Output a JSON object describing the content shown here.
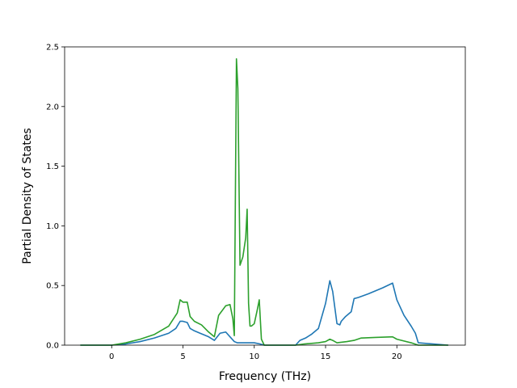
{
  "chart_data": {
    "type": "line",
    "title": "",
    "xlabel": "Frequency (THz)",
    "ylabel": "Partial Density of States",
    "xlim": [
      -3.3,
      24.8
    ],
    "ylim": [
      0,
      2.5
    ],
    "xticks": [
      0,
      5,
      10,
      15,
      20
    ],
    "xtick_labels": [
      "0",
      "5",
      "10",
      "15",
      "20"
    ],
    "yticks": [
      0.0,
      0.5,
      1.0,
      1.5,
      2.0,
      2.5
    ],
    "ytick_labels": [
      "0.0",
      "0.5",
      "1.0",
      "1.5",
      "2.0",
      "2.5"
    ],
    "grid": false,
    "legend": "none",
    "series": [
      {
        "color": "#1f77b4",
        "x": [
          -2.2,
          0.0,
          1.0,
          2.0,
          3.0,
          4.0,
          4.5,
          4.8,
          5.0,
          5.3,
          5.5,
          5.8,
          6.2,
          6.8,
          7.2,
          7.6,
          8.0,
          8.3,
          8.6,
          8.8,
          9.2,
          9.6,
          10.0,
          10.4,
          10.7,
          11.0,
          12.9,
          13.2,
          13.6,
          14.0,
          14.5,
          15.0,
          15.3,
          15.5,
          15.8,
          16.0,
          16.1,
          16.4,
          16.8,
          17.0,
          17.3,
          18.0,
          19.0,
          19.7,
          20.0,
          20.5,
          21.0,
          21.3,
          21.5,
          23.6
        ],
        "y": [
          0.0,
          0.0,
          0.01,
          0.03,
          0.06,
          0.1,
          0.14,
          0.2,
          0.2,
          0.19,
          0.14,
          0.12,
          0.1,
          0.07,
          0.04,
          0.1,
          0.11,
          0.07,
          0.03,
          0.02,
          0.02,
          0.02,
          0.02,
          0.01,
          0.0,
          0.0,
          0.0,
          0.04,
          0.06,
          0.09,
          0.14,
          0.35,
          0.54,
          0.45,
          0.18,
          0.17,
          0.2,
          0.24,
          0.28,
          0.39,
          0.4,
          0.43,
          0.48,
          0.52,
          0.38,
          0.25,
          0.16,
          0.1,
          0.02,
          0.0
        ]
      },
      {
        "color": "#2ca02c",
        "x": [
          -2.2,
          0.0,
          1.0,
          2.0,
          3.0,
          4.0,
          4.6,
          4.8,
          5.0,
          5.3,
          5.5,
          5.8,
          6.3,
          6.8,
          7.2,
          7.5,
          8.0,
          8.3,
          8.5,
          8.6,
          8.75,
          8.85,
          9.0,
          9.2,
          9.4,
          9.5,
          9.6,
          9.7,
          9.8,
          10.0,
          10.2,
          10.35,
          10.5,
          10.7,
          11.0,
          12.9,
          13.5,
          14.5,
          15.0,
          15.3,
          15.5,
          15.8,
          16.5,
          17.0,
          17.5,
          18.5,
          19.7,
          20.0,
          21.0,
          21.5,
          23.6
        ],
        "y": [
          0.0,
          0.0,
          0.02,
          0.05,
          0.09,
          0.16,
          0.27,
          0.38,
          0.36,
          0.36,
          0.24,
          0.2,
          0.17,
          0.11,
          0.07,
          0.25,
          0.33,
          0.34,
          0.22,
          0.08,
          2.4,
          2.15,
          0.67,
          0.74,
          0.9,
          1.14,
          0.35,
          0.16,
          0.16,
          0.18,
          0.29,
          0.38,
          0.05,
          0.0,
          0.0,
          0.0,
          0.01,
          0.02,
          0.03,
          0.05,
          0.04,
          0.02,
          0.03,
          0.04,
          0.06,
          0.065,
          0.07,
          0.05,
          0.02,
          0.0,
          0.0
        ]
      }
    ]
  }
}
